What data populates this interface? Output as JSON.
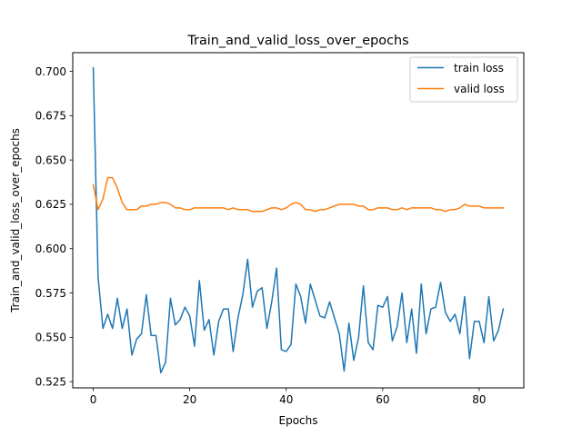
{
  "chart_data": {
    "type": "line",
    "title": "Train_and_valid_loss_over_epochs",
    "xlabel": "Epochs",
    "ylabel": "Train_and_valid_loss_over_epochs",
    "xlim": [
      -4.25,
      89.25
    ],
    "ylim": [
      0.5215,
      0.7105
    ],
    "xticks": [
      0,
      20,
      40,
      60,
      80
    ],
    "xtick_labels": [
      "0",
      "20",
      "40",
      "60",
      "80"
    ],
    "yticks": [
      0.525,
      0.55,
      0.575,
      0.6,
      0.625,
      0.65,
      0.675,
      0.7
    ],
    "ytick_labels": [
      "0.525",
      "0.550",
      "0.575",
      "0.600",
      "0.625",
      "0.650",
      "0.675",
      "0.700"
    ],
    "grid": false,
    "legend_position": "top-right",
    "series": [
      {
        "name": "train loss",
        "color": "#1f77b4",
        "x": [
          0,
          1,
          2,
          3,
          4,
          5,
          6,
          7,
          8,
          9,
          10,
          11,
          12,
          13,
          14,
          15,
          16,
          17,
          18,
          19,
          20,
          21,
          22,
          23,
          24,
          25,
          26,
          27,
          28,
          29,
          30,
          31,
          32,
          33,
          34,
          35,
          36,
          37,
          38,
          39,
          40,
          41,
          42,
          43,
          44,
          45,
          46,
          47,
          48,
          49,
          50,
          51,
          52,
          53,
          54,
          55,
          56,
          57,
          58,
          59,
          60,
          61,
          62,
          63,
          64,
          65,
          66,
          67,
          68,
          69,
          70,
          71,
          72,
          73,
          74,
          75,
          76,
          77,
          78,
          79,
          80,
          81,
          82,
          83,
          84,
          85
        ],
        "values": [
          0.702,
          0.584,
          0.555,
          0.563,
          0.555,
          0.572,
          0.555,
          0.566,
          0.54,
          0.549,
          0.552,
          0.574,
          0.551,
          0.551,
          0.53,
          0.536,
          0.572,
          0.557,
          0.56,
          0.567,
          0.562,
          0.545,
          0.582,
          0.554,
          0.56,
          0.54,
          0.559,
          0.566,
          0.566,
          0.542,
          0.561,
          0.574,
          0.594,
          0.567,
          0.576,
          0.578,
          0.555,
          0.57,
          0.589,
          0.543,
          0.542,
          0.546,
          0.58,
          0.573,
          0.558,
          0.58,
          0.571,
          0.562,
          0.561,
          0.57,
          0.561,
          0.552,
          0.531,
          0.558,
          0.537,
          0.55,
          0.579,
          0.547,
          0.543,
          0.568,
          0.567,
          0.573,
          0.548,
          0.556,
          0.575,
          0.547,
          0.566,
          0.541,
          0.58,
          0.552,
          0.566,
          0.567,
          0.581,
          0.564,
          0.559,
          0.563,
          0.552,
          0.573,
          0.538,
          0.559,
          0.559,
          0.547,
          0.573,
          0.548,
          0.554,
          0.566
        ]
      },
      {
        "name": "valid loss",
        "color": "#ff7f0e",
        "x": [
          0,
          1,
          2,
          3,
          4,
          5,
          6,
          7,
          8,
          9,
          10,
          11,
          12,
          13,
          14,
          15,
          16,
          17,
          18,
          19,
          20,
          21,
          22,
          23,
          24,
          25,
          26,
          27,
          28,
          29,
          30,
          31,
          32,
          33,
          34,
          35,
          36,
          37,
          38,
          39,
          40,
          41,
          42,
          43,
          44,
          45,
          46,
          47,
          48,
          49,
          50,
          51,
          52,
          53,
          54,
          55,
          56,
          57,
          58,
          59,
          60,
          61,
          62,
          63,
          64,
          65,
          66,
          67,
          68,
          69,
          70,
          71,
          72,
          73,
          74,
          75,
          76,
          77,
          78,
          79,
          80,
          81,
          82,
          83,
          84,
          85
        ],
        "values": [
          0.636,
          0.622,
          0.628,
          0.64,
          0.64,
          0.634,
          0.626,
          0.622,
          0.622,
          0.622,
          0.624,
          0.624,
          0.625,
          0.625,
          0.626,
          0.626,
          0.625,
          0.623,
          0.623,
          0.622,
          0.622,
          0.623,
          0.623,
          0.623,
          0.623,
          0.623,
          0.623,
          0.623,
          0.622,
          0.623,
          0.622,
          0.622,
          0.622,
          0.621,
          0.621,
          0.621,
          0.622,
          0.623,
          0.623,
          0.622,
          0.623,
          0.625,
          0.626,
          0.625,
          0.622,
          0.622,
          0.621,
          0.622,
          0.622,
          0.623,
          0.624,
          0.625,
          0.625,
          0.625,
          0.625,
          0.624,
          0.624,
          0.622,
          0.622,
          0.623,
          0.623,
          0.623,
          0.622,
          0.622,
          0.623,
          0.622,
          0.623,
          0.623,
          0.623,
          0.623,
          0.623,
          0.622,
          0.622,
          0.621,
          0.622,
          0.622,
          0.623,
          0.625,
          0.624,
          0.624,
          0.624,
          0.623,
          0.623,
          0.623,
          0.623,
          0.623
        ]
      }
    ]
  }
}
